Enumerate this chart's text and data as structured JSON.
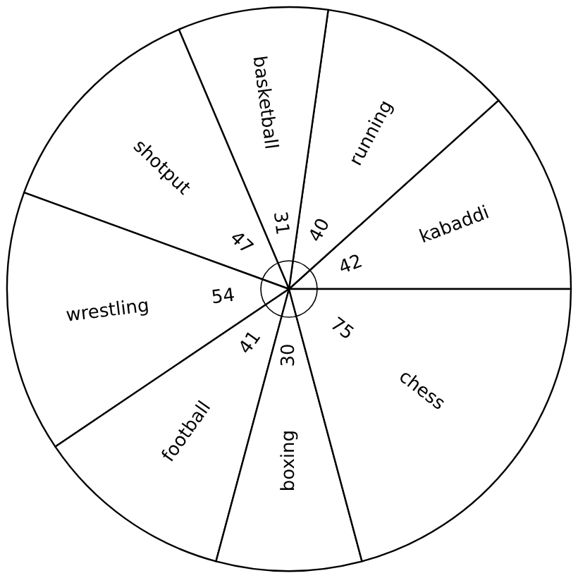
{
  "chart_data": {
    "type": "pie",
    "categories": [
      "kabaddi",
      "running",
      "basketball",
      "shotput",
      "wrestling",
      "football",
      "boxing",
      "chess"
    ],
    "values": [
      42,
      40,
      31,
      47,
      54,
      41,
      30,
      75
    ],
    "colors": [
      "#ffffff",
      "#ffffff",
      "#ffffff",
      "#ffffff",
      "#ffffff",
      "#ffffff",
      "#ffffff",
      "#ffffff"
    ],
    "data_labels": true
  }
}
